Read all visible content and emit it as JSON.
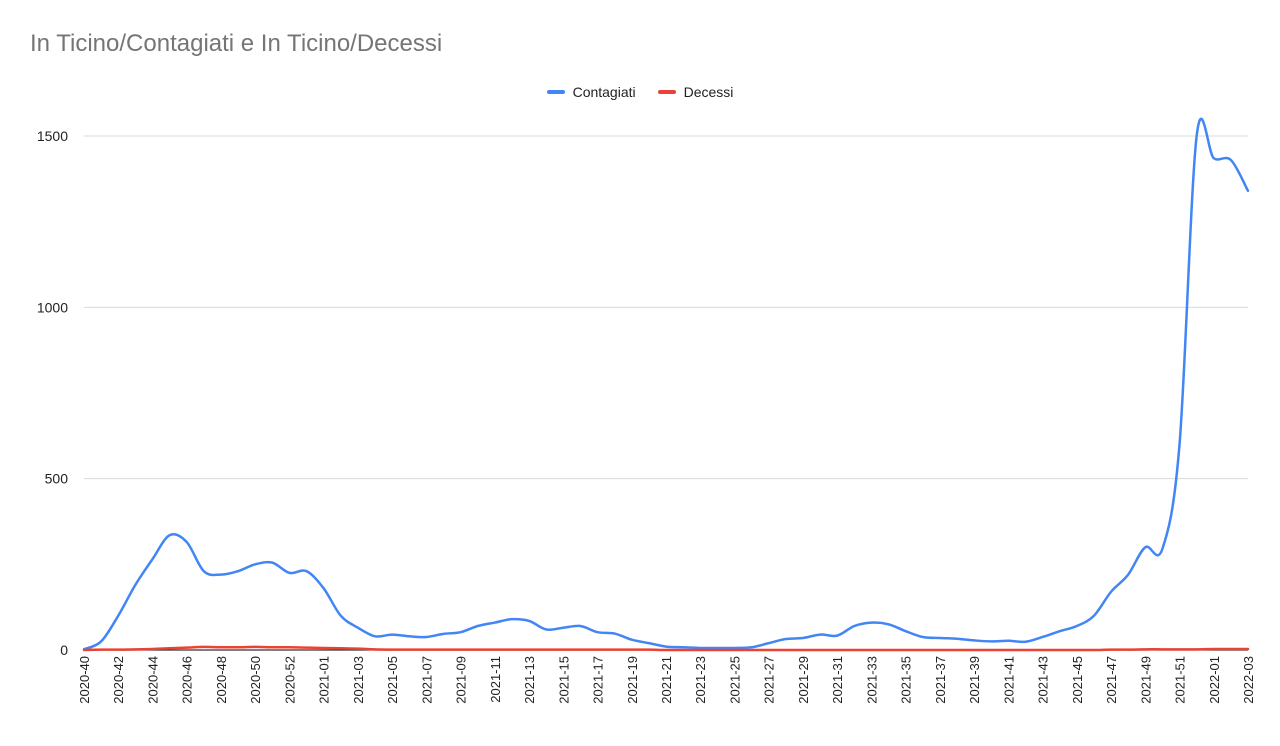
{
  "chart_data": {
    "type": "line",
    "title": "In Ticino/Contagiati e In Ticino/Decessi",
    "legend_position": "top",
    "grid": true,
    "ylim": [
      0,
      1500
    ],
    "yticks": [
      0,
      500,
      1000,
      1500
    ],
    "x": [
      "2020-40",
      "2020-41",
      "2020-42",
      "2020-43",
      "2020-44",
      "2020-45",
      "2020-46",
      "2020-47",
      "2020-48",
      "2020-49",
      "2020-50",
      "2020-51",
      "2020-52",
      "2020-53",
      "2021-01",
      "2021-02",
      "2021-03",
      "2021-04",
      "2021-05",
      "2021-06",
      "2021-07",
      "2021-08",
      "2021-09",
      "2021-10",
      "2021-11",
      "2021-12",
      "2021-13",
      "2021-14",
      "2021-15",
      "2021-16",
      "2021-17",
      "2021-18",
      "2021-19",
      "2021-20",
      "2021-21",
      "2021-22",
      "2021-23",
      "2021-24",
      "2021-25",
      "2021-26",
      "2021-27",
      "2021-28",
      "2021-29",
      "2021-30",
      "2021-31",
      "2021-32",
      "2021-33",
      "2021-34",
      "2021-35",
      "2021-36",
      "2021-37",
      "2021-38",
      "2021-39",
      "2021-40",
      "2021-41",
      "2021-42",
      "2021-43",
      "2021-44",
      "2021-45",
      "2021-46",
      "2021-47",
      "2021-48",
      "2021-49",
      "2021-50",
      "2021-51",
      "2021-52",
      "2022-01",
      "2022-02",
      "2022-03"
    ],
    "xtick_labels": [
      "2020-40",
      "2020-42",
      "2020-44",
      "2020-46",
      "2020-48",
      "2020-50",
      "2020-52",
      "2021-01",
      "2021-03",
      "2021-05",
      "2021-07",
      "2021-09",
      "2021-11",
      "2021-13",
      "2021-15",
      "2021-17",
      "2021-19",
      "2021-21",
      "2021-23",
      "2021-25",
      "2021-27",
      "2021-29",
      "2021-31",
      "2021-33",
      "2021-35",
      "2021-37",
      "2021-39",
      "2021-41",
      "2021-43",
      "2021-45",
      "2021-47",
      "2021-49",
      "2021-51",
      "2022-01",
      "2022-03"
    ],
    "series": [
      {
        "name": "Contagiati",
        "color": "#4285f4",
        "values": [
          2,
          25,
          100,
          190,
          265,
          335,
          315,
          230,
          220,
          230,
          250,
          255,
          225,
          230,
          180,
          100,
          65,
          40,
          45,
          40,
          38,
          47,
          52,
          70,
          80,
          90,
          85,
          60,
          65,
          70,
          52,
          48,
          30,
          20,
          10,
          8,
          6,
          6,
          6,
          8,
          20,
          32,
          35,
          45,
          42,
          70,
          80,
          75,
          55,
          38,
          35,
          33,
          28,
          25,
          27,
          24,
          38,
          55,
          70,
          100,
          170,
          220,
          300,
          295,
          600,
          1500,
          1435,
          1430,
          1340
        ]
      },
      {
        "name": "Decessi",
        "color": "#ea4335",
        "values": [
          0,
          1,
          1,
          2,
          3,
          5,
          7,
          9,
          8,
          8,
          9,
          8,
          8,
          7,
          6,
          5,
          4,
          2,
          1,
          1,
          1,
          1,
          1,
          1,
          1,
          1,
          1,
          1,
          1,
          1,
          1,
          1,
          1,
          1,
          0,
          0,
          0,
          0,
          0,
          0,
          0,
          0,
          0,
          0,
          0,
          0,
          0,
          0,
          0,
          0,
          0,
          0,
          0,
          0,
          0,
          0,
          0,
          0,
          0,
          0,
          1,
          1,
          2,
          2,
          2,
          2,
          3,
          3,
          3
        ]
      }
    ]
  },
  "colors": {
    "grid": "#d9d9d9",
    "axis": "#333333"
  }
}
